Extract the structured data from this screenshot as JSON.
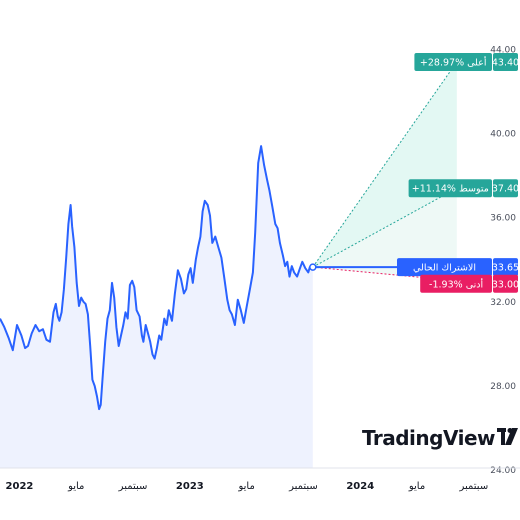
{
  "chart_data": {
    "type": "line",
    "title": "",
    "xlabel": "",
    "ylabel": "",
    "ylim": [
      22.2,
      45.3
    ],
    "y_ticks": [
      "24.00",
      "28.00",
      "32.00",
      "36.00",
      "40.00",
      "44.00"
    ],
    "y_tick_values": [
      24,
      28,
      32,
      36,
      40,
      44
    ],
    "x_ticks": [
      {
        "label": "2022",
        "bold": true,
        "t": 0
      },
      {
        "label": "مايو",
        "bold": false,
        "t": 4
      },
      {
        "label": "سبتمبر",
        "bold": false,
        "t": 8
      },
      {
        "label": "2023",
        "bold": true,
        "t": 12
      },
      {
        "label": "مايو",
        "bold": false,
        "t": 16
      },
      {
        "label": "سبتمبر",
        "bold": false,
        "t": 20
      },
      {
        "label": "2024",
        "bold": true,
        "t": 24
      },
      {
        "label": "مايو",
        "bold": false,
        "t": 28
      },
      {
        "label": "سبتمبر",
        "bold": false,
        "t": 32
      }
    ],
    "x_range": [
      -1.37,
      35.25
    ],
    "series": [
      {
        "values_t": [
          -1.37,
          -1.07,
          -0.77,
          -0.47,
          -0.17,
          0.14,
          0.4,
          0.6,
          0.86,
          1.13,
          1.39,
          1.65,
          1.9,
          2.15,
          2.4,
          2.56,
          2.7,
          2.81,
          2.97,
          3.13,
          3.29,
          3.45,
          3.6,
          3.71,
          3.87,
          4.03,
          4.19,
          4.35,
          4.51,
          4.66,
          4.82,
          4.98,
          5.14,
          5.3,
          5.46,
          5.61,
          5.72,
          5.88,
          6.04,
          6.2,
          6.36,
          6.52,
          6.67,
          6.83,
          6.99,
          7.15,
          7.31,
          7.47,
          7.62,
          7.78,
          7.94,
          8.09,
          8.25,
          8.46,
          8.62,
          8.73,
          8.89,
          9.05,
          9.21,
          9.37,
          9.52,
          9.68,
          9.84,
          9.99,
          10.2,
          10.36,
          10.52,
          10.74,
          10.95,
          11.16,
          11.37,
          11.58,
          11.74,
          11.89,
          12.05,
          12.21,
          12.42,
          12.58,
          12.74,
          12.9,
          13.05,
          13.26,
          13.42,
          13.58,
          13.79,
          14.0,
          14.22,
          14.43,
          14.64,
          14.8,
          14.96,
          15.17,
          15.38,
          15.59,
          15.8,
          16.01,
          16.23,
          16.44,
          16.6,
          16.81,
          17.02,
          17.23,
          17.44,
          17.6,
          17.81,
          18.02,
          18.18,
          18.34,
          18.55,
          18.71,
          18.86,
          19.02,
          19.18,
          19.34,
          19.55,
          19.76,
          19.92,
          20.13,
          20.34,
          20.45,
          20.66
        ],
        "values": [
          31.2,
          30.8,
          30.3,
          29.7,
          30.9,
          30.4,
          29.8,
          29.9,
          30.5,
          30.9,
          30.6,
          30.7,
          30.2,
          30.1,
          31.5,
          31.9,
          31.3,
          31.1,
          31.5,
          32.6,
          34.1,
          35.7,
          36.6,
          35.6,
          34.6,
          32.9,
          31.8,
          32.2,
          32.0,
          31.9,
          31.4,
          29.9,
          28.3,
          28.0,
          27.5,
          26.9,
          27.1,
          28.6,
          30.1,
          31.2,
          31.6,
          32.9,
          32.2,
          30.8,
          29.9,
          30.4,
          30.9,
          31.5,
          31.2,
          32.8,
          33.0,
          32.7,
          31.6,
          31.3,
          30.4,
          30.1,
          30.9,
          30.5,
          30.1,
          29.5,
          29.3,
          29.8,
          30.4,
          30.2,
          31.2,
          30.9,
          31.6,
          31.1,
          32.4,
          33.5,
          33.1,
          32.4,
          32.6,
          33.3,
          33.6,
          32.9,
          34.0,
          34.6,
          35.1,
          36.3,
          36.8,
          36.6,
          36.1,
          34.8,
          35.1,
          34.6,
          34.1,
          33.1,
          32.1,
          31.6,
          31.4,
          30.9,
          32.1,
          31.6,
          31.0,
          31.8,
          32.6,
          33.4,
          35.3,
          38.6,
          39.4,
          38.5,
          37.8,
          37.3,
          36.5,
          35.7,
          35.5,
          34.8,
          34.2,
          33.7,
          33.9,
          33.2,
          33.7,
          33.4,
          33.2,
          33.6,
          33.9,
          33.6,
          33.4,
          33.65,
          33.65
        ]
      }
    ],
    "current_label": "الاشتراك الحالي",
    "current_value": "33.65",
    "projection_start_t": 20.66,
    "projection_end_t": 30.8,
    "forecasts": [
      {
        "name": "high",
        "label": "+28.97% أعلى",
        "value": 43.4,
        "value_label": "43.40",
        "color": "#26a69a"
      },
      {
        "name": "average",
        "label": "+11.14% متوسط",
        "value": 37.4,
        "value_label": "37.40",
        "color": "#26a69a"
      },
      {
        "name": "low",
        "label": "-1.93% أدنى",
        "value": 33.0,
        "value_label": "33.00",
        "color": "#e91e63"
      }
    ],
    "colors": {
      "line": "#2962ff",
      "area_fill": "#eef2fe",
      "forecast_fill": "#e3f8f3",
      "high": "#26a69a",
      "low": "#e91e63",
      "current": "#2962ff",
      "axis_text": "#4a4f5c"
    },
    "watermark": "TradingView"
  }
}
